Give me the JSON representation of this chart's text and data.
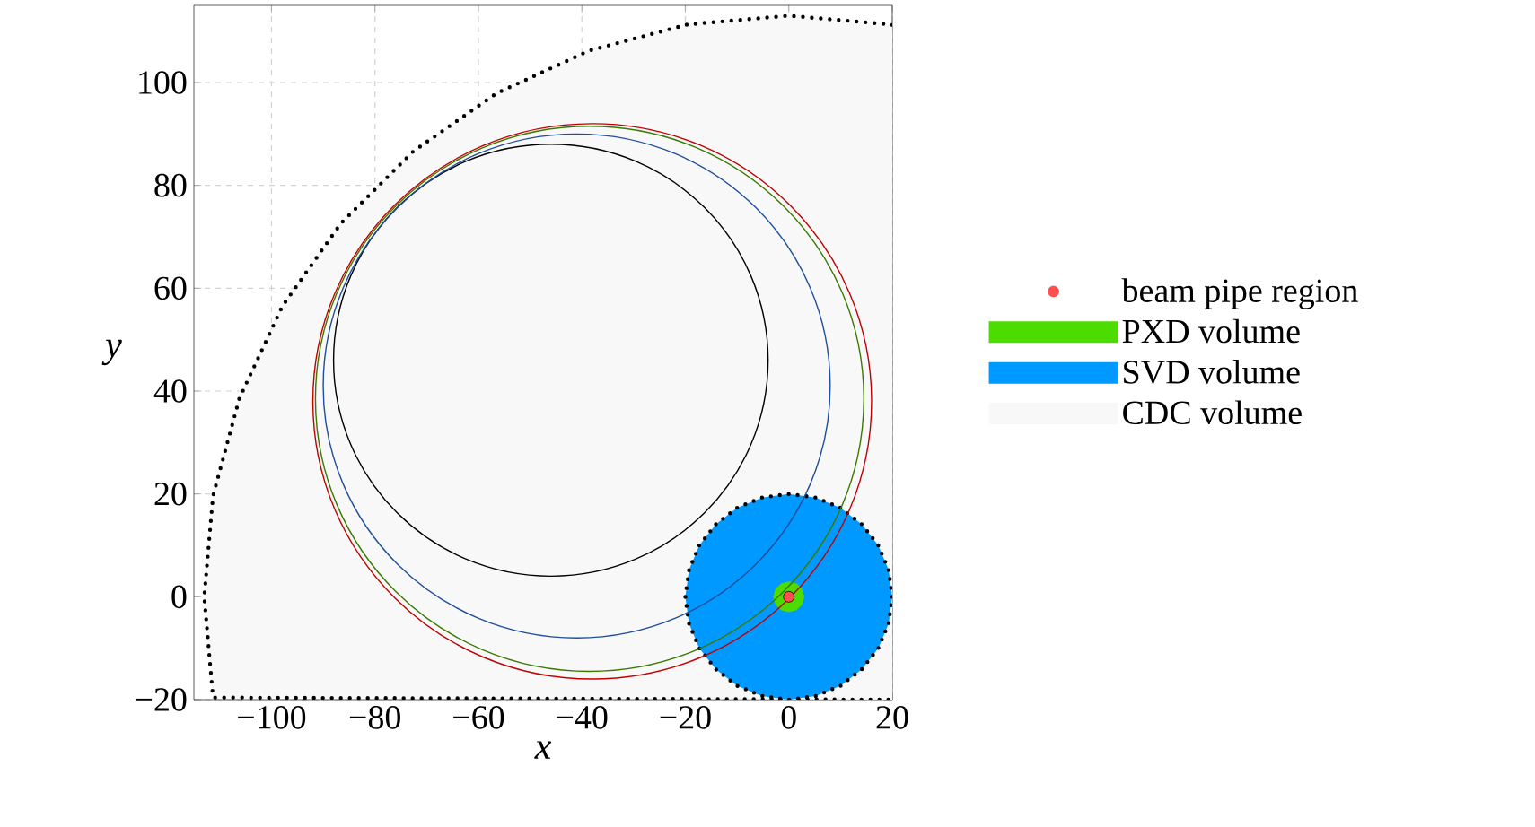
{
  "chart_data": {
    "type": "area",
    "xlabel": "x",
    "ylabel": "y",
    "xlim": [
      -115,
      20
    ],
    "ylim": [
      -20,
      115
    ],
    "xticks": [
      {
        "value": -100,
        "label": "−100"
      },
      {
        "value": -80,
        "label": "−80"
      },
      {
        "value": -60,
        "label": "−60"
      },
      {
        "value": -40,
        "label": "−40"
      },
      {
        "value": -20,
        "label": "−20"
      },
      0,
      20
    ],
    "yticks": [
      {
        "value": -20,
        "label": "−20"
      },
      0,
      20,
      40,
      60,
      80,
      100
    ],
    "grid": true,
    "legend": "right",
    "series": [
      {
        "name": "beam pipe region",
        "type": "scatter",
        "marker": "circle",
        "color": "#ff4f4f",
        "x": [
          0
        ],
        "values": [
          0
        ]
      },
      {
        "name": "PXD volume",
        "color": "#4ddc00",
        "x": [
          3,
          2.6,
          1.5,
          0,
          -1.5,
          -2.6,
          -3,
          -2.6,
          -1.5,
          0,
          1.5,
          2.6,
          3
        ],
        "values": [
          0,
          1.5,
          2.6,
          3,
          2.6,
          1.5,
          0,
          -1.5,
          -2.6,
          -3,
          -2.6,
          -1.5,
          0
        ]
      },
      {
        "name": "SVD volume",
        "color": "#0099ff",
        "line_style": "dotted",
        "x": [
          20,
          19.3,
          17.3,
          14.1,
          10,
          5.2,
          0,
          -5.2,
          -10,
          -14.1,
          -17.3,
          -19.3,
          -20,
          -19.3,
          -17.3,
          -14.1,
          -10,
          -5.2,
          0,
          5.2,
          10,
          14.1,
          17.3,
          19.3,
          20
        ],
        "values": [
          0,
          5.2,
          10,
          14.1,
          17.3,
          19.3,
          20,
          19.3,
          17.3,
          14.1,
          10,
          5.2,
          0,
          -5.2,
          -10,
          -14.1,
          -17.3,
          -19.3,
          -20,
          -19.3,
          -17.3,
          -14.1,
          -10,
          -5.2,
          0
        ]
      },
      {
        "name": "CDC volume",
        "color": "#f8f8f8",
        "line_style": "dotted",
        "x": [
          20,
          19.6,
          0,
          -19.6,
          -38.6,
          -56.5,
          -72.6,
          -86.6,
          -97.9,
          -106.2,
          -111.3,
          -113,
          -111.3,
          20
        ],
        "values": [
          111.2,
          111.3,
          113,
          111.3,
          106.2,
          97.9,
          86.6,
          72.6,
          56.5,
          38.6,
          19.6,
          0,
          -19.6,
          -20
        ]
      }
    ]
  }
}
